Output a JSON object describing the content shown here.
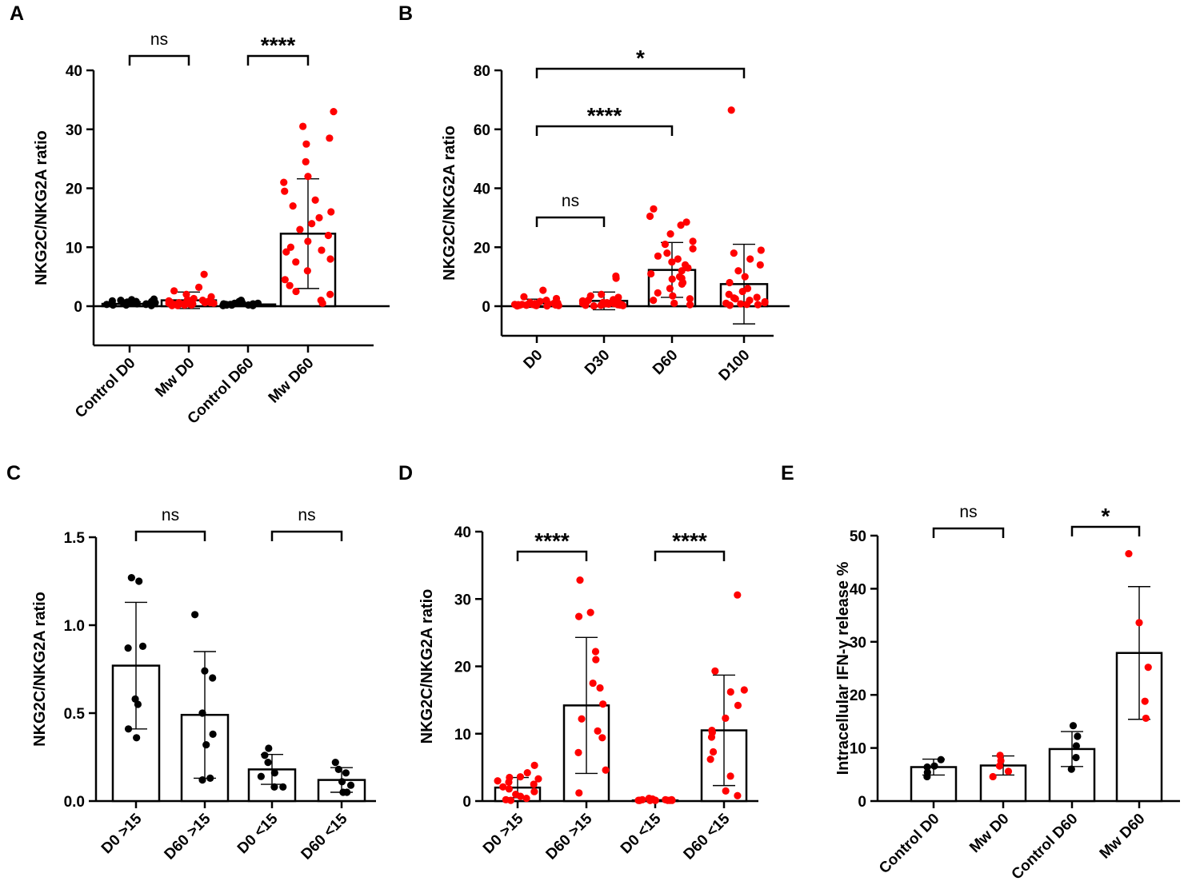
{
  "figure": {
    "background": "#ffffff"
  },
  "colors": {
    "black": "#000000",
    "red": "#ff0000"
  },
  "chart_data": [
    {
      "panel": "A",
      "type": "bar",
      "ylabel": "NKG2C/NKG2A ratio",
      "ylim": [
        -7,
        40
      ],
      "yticks": [
        0,
        10,
        20,
        30,
        40
      ],
      "ytick_labels": [
        "0",
        "10",
        "20",
        "30",
        "40"
      ],
      "categories": [
        "Control D0",
        "Mw D0",
        "Control D60",
        "Mw D60"
      ],
      "means": [
        0.4,
        1.0,
        0.3,
        12.3
      ],
      "sd": [
        0.35,
        1.4,
        0.3,
        9.3
      ],
      "point_colors": [
        "#000000",
        "#ff0000",
        "#000000",
        "#ff0000"
      ],
      "points": [
        [
          0.1,
          0.3,
          0.5,
          0.6,
          0.7,
          0.8,
          0.9,
          1.0,
          1.1,
          1.2,
          0.4,
          0.2,
          0.6,
          0.3,
          0.5,
          0.8,
          0.2,
          0.4
        ],
        [
          0.1,
          0.2,
          0.3,
          0.4,
          0.5,
          0.6,
          0.8,
          1.0,
          1.3,
          1.6,
          2.0,
          2.6,
          3.2,
          5.4,
          0.2,
          0.4,
          0.7,
          0.9,
          0.3,
          0.5,
          0.6,
          0.2,
          0.4,
          0.8,
          1.1,
          0.3,
          0.6,
          0.1
        ],
        [
          0.1,
          0.2,
          0.3,
          0.4,
          0.5,
          0.6,
          0.8,
          1.0,
          0.2,
          0.3,
          0.4,
          0.2,
          0.1,
          0.3,
          0.5,
          0.2,
          0.3
        ],
        [
          0.5,
          1.0,
          2.0,
          3.5,
          4.5,
          6.0,
          7.5,
          8.0,
          9.2,
          10.0,
          11.0,
          12.0,
          13.0,
          14.0,
          15.0,
          16.0,
          17.0,
          18.0,
          19.5,
          21.0,
          22.0,
          24.5,
          27.5,
          28.5,
          30.5,
          33.0,
          2.5,
          9.5
        ]
      ],
      "comparisons": [
        {
          "groups": [
            0,
            1
          ],
          "label": "ns"
        },
        {
          "groups": [
            2,
            3
          ],
          "label": "****"
        }
      ]
    },
    {
      "panel": "B",
      "type": "bar",
      "ylabel": "NKG2C/NKG2A ratio",
      "ylim": [
        -10,
        80
      ],
      "yticks": [
        0,
        20,
        40,
        60,
        80
      ],
      "ytick_labels": [
        "0",
        "20",
        "40",
        "60",
        "80"
      ],
      "categories": [
        "D0",
        "D30",
        "D60",
        "D100"
      ],
      "means": [
        1.0,
        1.8,
        12.3,
        7.5
      ],
      "sd": [
        1.4,
        3.0,
        9.3,
        13.5
      ],
      "point_colors": [
        "#ff0000",
        "#ff0000",
        "#ff0000",
        "#ff0000"
      ],
      "points": [
        [
          0.1,
          0.2,
          0.3,
          0.4,
          0.5,
          0.6,
          0.8,
          1.0,
          1.3,
          1.6,
          2.0,
          2.6,
          3.2,
          5.4,
          0.2,
          0.4,
          0.7,
          0.9,
          0.3,
          0.5,
          0.6,
          0.2,
          0.4,
          0.8,
          1.1,
          0.3,
          0.6,
          0.1
        ],
        [
          0.1,
          0.3,
          0.5,
          0.8,
          1.0,
          1.2,
          1.5,
          2.0,
          2.5,
          3.0,
          3.5,
          4.0,
          9.5,
          10.2,
          0.4,
          0.6,
          0.9,
          1.1,
          0.2,
          0.7,
          1.3,
          0.5,
          1.8,
          0.3,
          2.2,
          0.8
        ],
        [
          0.5,
          1.0,
          2.0,
          3.5,
          4.5,
          6.0,
          7.5,
          8.0,
          9.2,
          10.0,
          11.0,
          12.0,
          13.0,
          14.0,
          15.0,
          16.0,
          17.0,
          18.0,
          19.5,
          21.0,
          22.0,
          24.5,
          27.5,
          28.5,
          30.5,
          33.0,
          2.5,
          9.5
        ],
        [
          0.3,
          0.6,
          1.0,
          1.5,
          2.0,
          2.5,
          3.0,
          4.0,
          5.0,
          6.0,
          8.0,
          10.0,
          12.0,
          14.0,
          16.0,
          18.0,
          19.0,
          1.2,
          0.8,
          2.8,
          66.5,
          0.5
        ]
      ],
      "comparisons": [
        {
          "groups": [
            0,
            1
          ],
          "label": "ns"
        },
        {
          "groups": [
            0,
            2
          ],
          "label": "****"
        },
        {
          "groups": [
            0,
            3
          ],
          "label": "*"
        }
      ]
    },
    {
      "panel": "C",
      "type": "bar",
      "ylabel": "NKG2C/NKG2A ratio",
      "ylim": [
        0,
        1.5
      ],
      "yticks": [
        0,
        0.5,
        1.0,
        1.5
      ],
      "ytick_labels": [
        "0.0",
        "0.5",
        "1.0",
        "1.5"
      ],
      "categories": [
        "D0 >15",
        "D60 >15",
        "D0 <15",
        "D60 <15"
      ],
      "means": [
        0.77,
        0.49,
        0.18,
        0.12
      ],
      "sd": [
        0.36,
        0.36,
        0.085,
        0.07
      ],
      "point_colors": [
        "#000000",
        "#000000",
        "#000000",
        "#000000"
      ],
      "points": [
        [
          1.25,
          1.27,
          0.88,
          0.87,
          0.58,
          0.55,
          0.41,
          0.36
        ],
        [
          1.06,
          0.74,
          0.7,
          0.5,
          0.38,
          0.32,
          0.13,
          0.12
        ],
        [
          0.3,
          0.26,
          0.22,
          0.16,
          0.14,
          0.08,
          0.08
        ],
        [
          0.22,
          0.18,
          0.16,
          0.11,
          0.09,
          0.05,
          0.05
        ]
      ],
      "comparisons": [
        {
          "groups": [
            0,
            1
          ],
          "label": "ns"
        },
        {
          "groups": [
            2,
            3
          ],
          "label": "ns"
        }
      ]
    },
    {
      "panel": "D",
      "type": "bar",
      "ylabel": "NKG2C/NKG2A ratio",
      "ylim": [
        0,
        40
      ],
      "yticks": [
        0,
        10,
        20,
        30,
        40
      ],
      "ytick_labels": [
        "0",
        "10",
        "20",
        "30",
        "40"
      ],
      "categories": [
        "D0 >15",
        "D60 >15",
        "D0 <15",
        "D60 <15"
      ],
      "means": [
        2.0,
        14.2,
        0.1,
        10.5
      ],
      "sd": [
        1.5,
        10.1,
        0.1,
        8.2
      ],
      "point_colors": [
        "#ff0000",
        "#ff0000",
        "#ff0000",
        "#ff0000"
      ],
      "points": [
        [
          5.3,
          4.2,
          3.6,
          3.5,
          3.3,
          3.0,
          2.8,
          2.5,
          2.1,
          1.8,
          1.4,
          1.0,
          0.7,
          0.4,
          0.2,
          0.1
        ],
        [
          32.8,
          28.0,
          27.4,
          22.2,
          21.0,
          17.5,
          16.8,
          14.4,
          12.2,
          10.4,
          9.4,
          7.2,
          4.6,
          1.2
        ],
        [
          0.4,
          0.3,
          0.2,
          0.2,
          0.2,
          0.1,
          0.1,
          0.1,
          0.1,
          0.1,
          0.1,
          0.1,
          0.1,
          0.1,
          0.1
        ],
        [
          30.6,
          19.3,
          16.5,
          16.2,
          14.2,
          12.3,
          10.5,
          10.2,
          9.5,
          7.3,
          6.2,
          3.7,
          1.5,
          0.8
        ]
      ],
      "comparisons": [
        {
          "groups": [
            0,
            1
          ],
          "label": "****"
        },
        {
          "groups": [
            2,
            3
          ],
          "label": "****"
        }
      ]
    },
    {
      "panel": "E",
      "type": "bar",
      "ylabel": "Intracellular IFN-γ release %",
      "ylim": [
        0,
        50
      ],
      "yticks": [
        0,
        10,
        20,
        30,
        40,
        50
      ],
      "ytick_labels": [
        "0",
        "10",
        "20",
        "30",
        "40",
        "50"
      ],
      "categories": [
        "Control D0",
        "Mw D0",
        "Control D60",
        "Mw D60"
      ],
      "means": [
        6.4,
        6.7,
        9.8,
        27.9
      ],
      "sd": [
        1.5,
        1.8,
        3.3,
        12.5
      ],
      "point_colors": [
        "#000000",
        "#ff0000",
        "#000000",
        "#ff0000"
      ],
      "points": [
        [
          7.8,
          6.6,
          6.4,
          5.4,
          4.6
        ],
        [
          8.6,
          7.6,
          6.6,
          5.6,
          4.6
        ],
        [
          14.2,
          12.2,
          10.4,
          8.2,
          6.0
        ],
        [
          46.6,
          33.6,
          25.2,
          18.8,
          15.6
        ]
      ],
      "comparisons": [
        {
          "groups": [
            0,
            1
          ],
          "label": "ns"
        },
        {
          "groups": [
            2,
            3
          ],
          "label": "*"
        }
      ]
    }
  ]
}
